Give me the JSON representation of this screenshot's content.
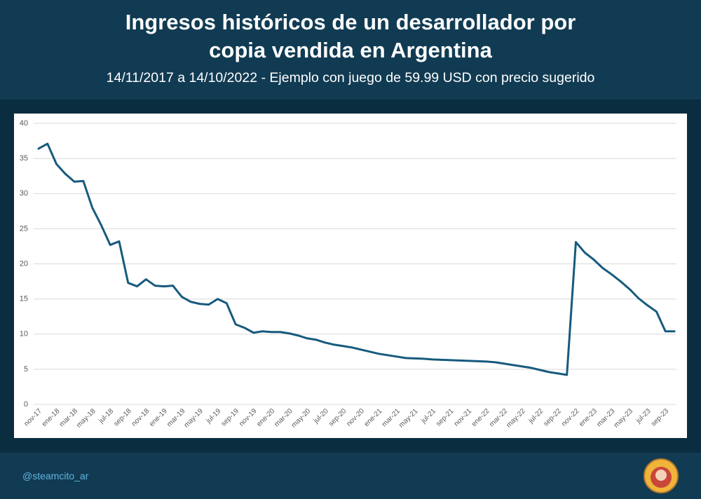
{
  "chart_data": {
    "type": "line",
    "title": "Ingresos históricos de un desarrollador por copia vendida en Argentina",
    "subtitle": "14/11/2017 a 14/10/2022 - Ejemplo con juego de 59.99 USD con precio sugerido",
    "categories": [
      "nov-17",
      null,
      "ene-18",
      null,
      "mar-18",
      null,
      "may-18",
      null,
      "jul-18",
      null,
      "sep-18",
      null,
      "nov-18",
      null,
      "ene-19",
      null,
      "mar-19",
      null,
      "may-19",
      null,
      "jul-19",
      null,
      "sep-19",
      null,
      "nov-19",
      null,
      "ene-20",
      null,
      "mar-20",
      null,
      "may-20",
      null,
      "jul-20",
      null,
      "sep-20",
      null,
      "nov-20",
      null,
      "ene-21",
      null,
      "mar-21",
      null,
      "may-21",
      null,
      "jul-21",
      null,
      "sep-21",
      null,
      "nov-21",
      null,
      "ene-22",
      null,
      "mar-22",
      null,
      "may-22",
      null,
      "jul-22",
      null,
      "sep-22",
      null,
      "nov-22",
      null,
      "ene-23",
      null,
      "mar-23",
      null,
      "may-23",
      null,
      "jul-23",
      null,
      "sep-23",
      null
    ],
    "series": [
      {
        "name": "Ingresos",
        "color": "#175a7e",
        "values": [
          36.4,
          37.1,
          34.2,
          32.8,
          31.7,
          31.8,
          28.0,
          25.5,
          22.7,
          23.2,
          17.3,
          16.8,
          17.8,
          16.9,
          16.8,
          16.9,
          15.3,
          14.6,
          14.3,
          14.2,
          15.0,
          14.4,
          11.4,
          10.9,
          10.2,
          10.4,
          10.3,
          10.3,
          10.1,
          9.8,
          9.4,
          9.2,
          8.8,
          8.5,
          8.3,
          8.1,
          7.8,
          7.5,
          7.2,
          7.0,
          6.8,
          6.6,
          6.55,
          6.5,
          6.4,
          6.35,
          6.3,
          6.25,
          6.2,
          6.15,
          6.1,
          6.0,
          5.8,
          5.6,
          5.4,
          5.2,
          4.9,
          4.6,
          4.4,
          4.2,
          23.1,
          21.6,
          20.6,
          19.4,
          18.5,
          17.5,
          16.4,
          15.1,
          14.1,
          13.2,
          10.4,
          10.4
        ]
      }
    ],
    "ylim": [
      0,
      40
    ],
    "yticks": [
      0,
      5,
      10,
      15,
      20,
      25,
      30,
      35,
      40
    ],
    "grid": true
  },
  "footer": {
    "handle": "@steamcito_ar"
  }
}
